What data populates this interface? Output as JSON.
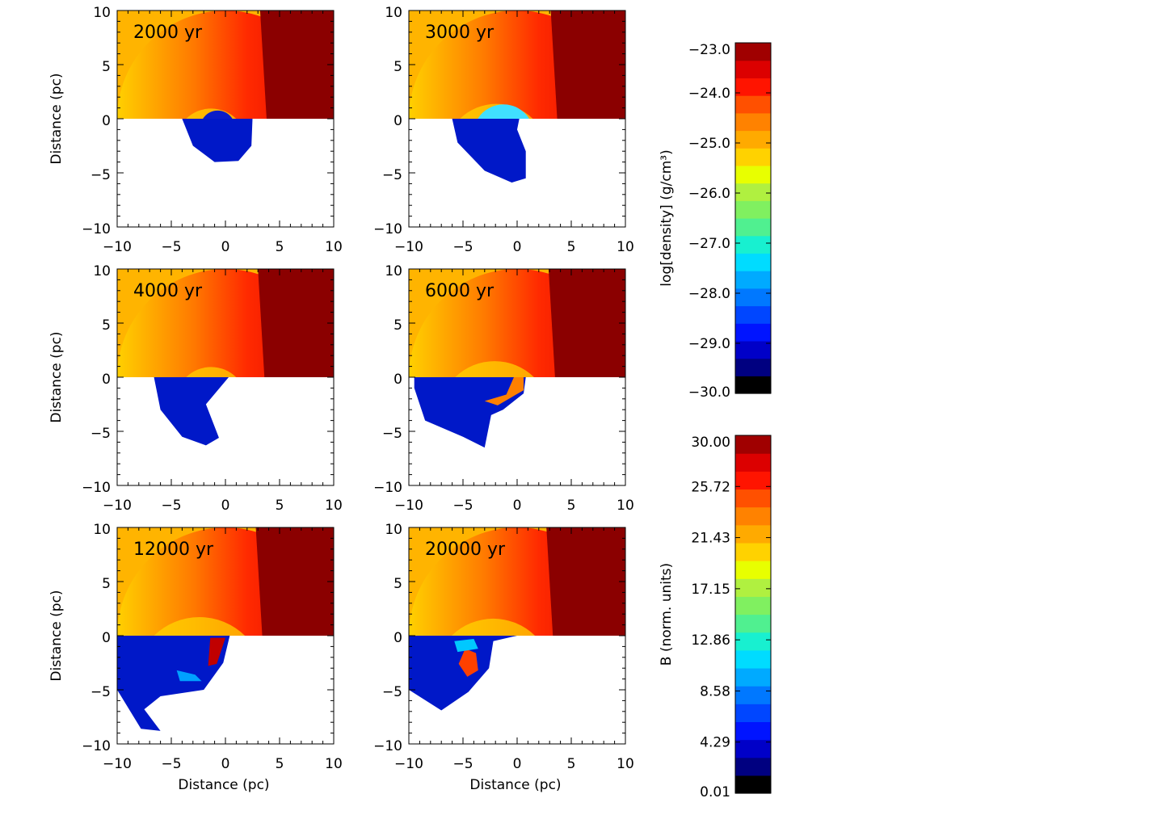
{
  "chart_data": {
    "type": "heatmap",
    "description_units": "pc",
    "panels": [
      {
        "label": "2000 yr",
        "time_yr": 2000
      },
      {
        "label": "3000 yr",
        "time_yr": 3000
      },
      {
        "label": "4000 yr",
        "time_yr": 4000
      },
      {
        "label": "6000 yr",
        "time_yr": 6000
      },
      {
        "label": "12000 yr",
        "time_yr": 12000
      },
      {
        "label": "20000 yr",
        "time_yr": 20000
      }
    ],
    "xlabel": "Distance (pc)",
    "ylabel": "Distance (pc)",
    "xlim": [
      -10,
      10
    ],
    "ylim": [
      -10,
      10
    ],
    "x_ticks": [
      "−10",
      "−5",
      "0",
      "5",
      "10"
    ],
    "y_ticks": [
      "10",
      "5",
      "0",
      "−5",
      "−10"
    ],
    "upper_half_quantity": "log[density] (g/cm³)",
    "lower_half_quantity": "B (norm. units)",
    "colorbars": [
      {
        "title": "log[density] (g/cm³)",
        "min": -30.0,
        "max": -23.0,
        "tick_labels": [
          "−23.0",
          "−24.0",
          "−25.0",
          "−26.0",
          "−27.0",
          "−28.0",
          "−29.0",
          "−30.0"
        ]
      },
      {
        "title": "B (norm. units)",
        "min": 0.01,
        "max": 30.0,
        "tick_labels": [
          "30.00",
          "25.72",
          "21.43",
          "17.15",
          "12.86",
          "8.58",
          "4.29",
          "0.01"
        ]
      }
    ],
    "colormap": [
      "#000000",
      "#000080",
      "#0000c8",
      "#0014ff",
      "#0046ff",
      "#0078ff",
      "#00aaff",
      "#00dcff",
      "#18f0d0",
      "#50f090",
      "#80f060",
      "#b0f040",
      "#e8ff00",
      "#ffd200",
      "#ffaa00",
      "#ff8200",
      "#ff5000",
      "#ff1400",
      "#dc0000",
      "#a00000"
    ]
  }
}
